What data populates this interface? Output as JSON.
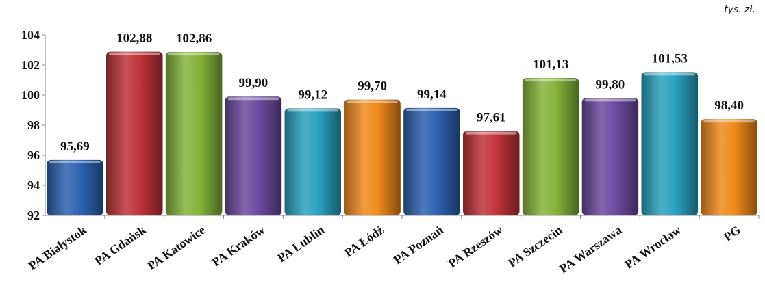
{
  "unit_label": "tys. zł.",
  "chart_data": {
    "type": "bar",
    "categories": [
      "PA Białystok",
      "PA Gdańsk",
      "PA Katowice",
      "PA Kraków",
      "PA Lublin",
      "PA Łódź",
      "PA Poznań",
      "PA Rzeszów",
      "PA Szczecin",
      "PA Warszawa",
      "PA Wrocław",
      "PG"
    ],
    "values": [
      95.69,
      102.88,
      102.86,
      99.9,
      99.12,
      99.7,
      99.14,
      97.61,
      101.13,
      99.8,
      101.53,
      98.4
    ],
    "value_labels": [
      "95,69",
      "102,88",
      "102,86",
      "99,90",
      "99,12",
      "99,70",
      "99,14",
      "97,61",
      "101,13",
      "99,80",
      "101,53",
      "98,40"
    ],
    "colors": [
      "#2d63b0",
      "#c0343a",
      "#84b43a",
      "#6c4a9e",
      "#2aa2c0",
      "#f08a1c",
      "#2d63b0",
      "#c0343a",
      "#84b43a",
      "#6c4a9e",
      "#2aa2c0",
      "#f08a1c"
    ],
    "ylim": [
      92,
      104
    ],
    "yticks": [
      "92",
      "94",
      "96",
      "98",
      "100",
      "102",
      "104"
    ],
    "grid": false,
    "legend": "none"
  }
}
